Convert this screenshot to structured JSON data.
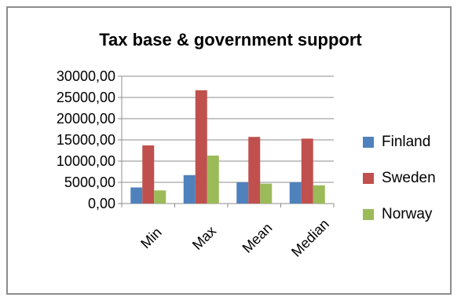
{
  "chart_data": {
    "type": "bar",
    "title": "Tax base & government support",
    "xlabel": "",
    "ylabel": "",
    "categories": [
      "Min",
      "Max",
      "Mean",
      "Median"
    ],
    "series": [
      {
        "name": "Finland",
        "color": "#4f81bd",
        "values": [
          3800,
          6700,
          5000,
          5000
        ]
      },
      {
        "name": "Sweden",
        "color": "#c0504d",
        "values": [
          13700,
          26700,
          15700,
          15300
        ]
      },
      {
        "name": "Norway",
        "color": "#9bbb59",
        "values": [
          3100,
          11300,
          4700,
          4300
        ]
      }
    ],
    "ylim": [
      0,
      30000
    ],
    "yticks": [
      0,
      5000,
      10000,
      15000,
      20000,
      25000,
      30000
    ],
    "ytick_labels": [
      "0,00",
      "5000,00",
      "10000,00",
      "15000,00",
      "20000,00",
      "25000,00",
      "30000,00"
    ],
    "grid": true,
    "legend_position": "right"
  }
}
